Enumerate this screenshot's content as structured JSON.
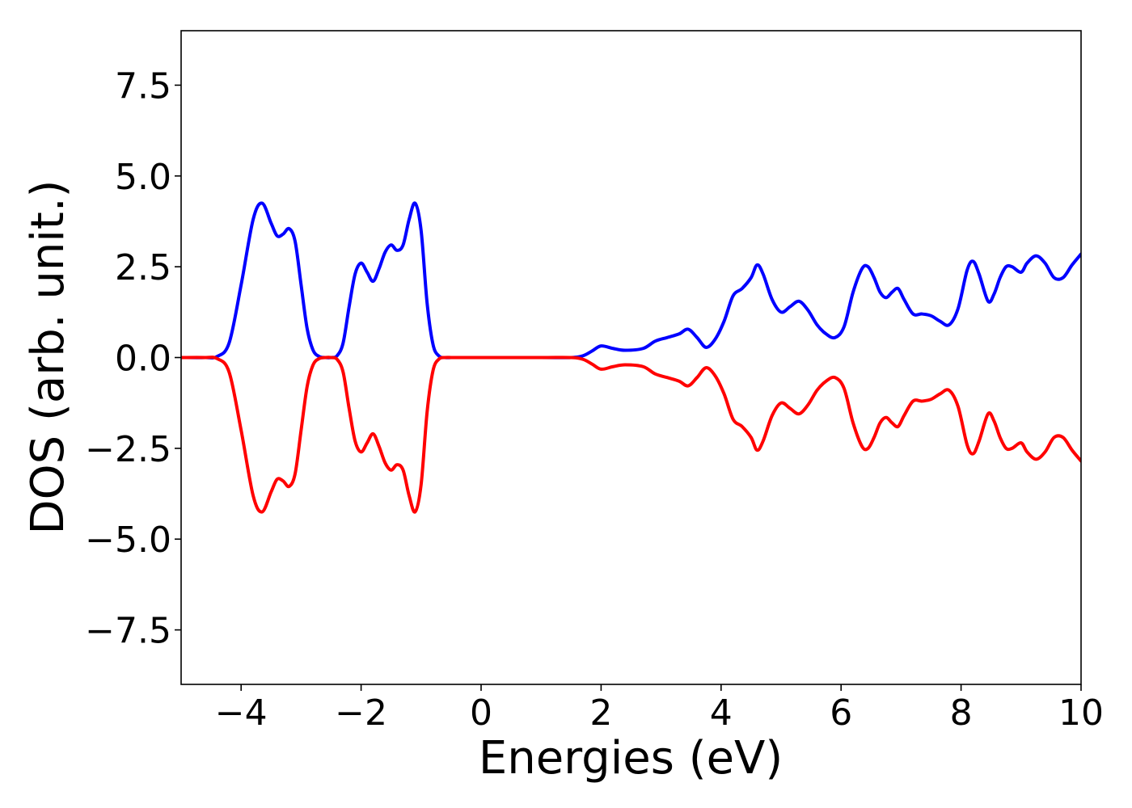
{
  "chart_data": {
    "type": "line",
    "title": "",
    "xlabel": "Energies (eV)",
    "ylabel": "DOS (arb. unit.)",
    "xlim": [
      -5,
      10
    ],
    "ylim": [
      -9,
      9
    ],
    "grid": false,
    "x_ticks": [
      {
        "value": -4,
        "label": "−4"
      },
      {
        "value": -2,
        "label": "−2"
      },
      {
        "value": 0,
        "label": "0"
      },
      {
        "value": 2,
        "label": "2"
      },
      {
        "value": 4,
        "label": "4"
      },
      {
        "value": 6,
        "label": "6"
      },
      {
        "value": 8,
        "label": "8"
      },
      {
        "value": 10,
        "label": "10"
      }
    ],
    "y_ticks": [
      {
        "value": 7.5,
        "label": "7.5"
      },
      {
        "value": 5.0,
        "label": "5.0"
      },
      {
        "value": 2.5,
        "label": "2.5"
      },
      {
        "value": 0.0,
        "label": "0.0"
      },
      {
        "value": -2.5,
        "label": "−2.5"
      },
      {
        "value": -5.0,
        "label": "−5.0"
      },
      {
        "value": -7.5,
        "label": "−7.5"
      }
    ],
    "series": [
      {
        "color": "#0000ff",
        "x": [
          -5.0,
          -4.6,
          -4.4,
          -4.2,
          -4.0,
          -3.8,
          -3.65,
          -3.5,
          -3.4,
          -3.3,
          -3.2,
          -3.1,
          -3.0,
          -2.9,
          -2.8,
          -2.7,
          -2.6,
          -2.5,
          -2.4,
          -2.3,
          -2.2,
          -2.1,
          -2.0,
          -1.9,
          -1.8,
          -1.7,
          -1.6,
          -1.5,
          -1.4,
          -1.3,
          -1.2,
          -1.1,
          -1.0,
          -0.9,
          -0.8,
          -0.7,
          -0.6,
          -0.5,
          -0.4,
          0.0,
          1.0,
          1.5,
          1.7,
          1.85,
          2.0,
          2.2,
          2.4,
          2.7,
          2.9,
          3.1,
          3.3,
          3.45,
          3.6,
          3.75,
          3.9,
          4.05,
          4.2,
          4.35,
          4.5,
          4.6,
          4.7,
          4.85,
          5.0,
          5.15,
          5.3,
          5.45,
          5.6,
          5.75,
          5.9,
          6.05,
          6.2,
          6.35,
          6.45,
          6.55,
          6.65,
          6.75,
          6.85,
          6.95,
          7.05,
          7.2,
          7.35,
          7.5,
          7.65,
          7.8,
          7.95,
          8.1,
          8.2,
          8.3,
          8.45,
          8.55,
          8.65,
          8.75,
          8.85,
          9.0,
          9.1,
          9.25,
          9.4,
          9.55,
          9.7,
          9.85,
          10.0
        ],
        "values": [
          0.0,
          0.0,
          0.03,
          0.4,
          2.0,
          3.8,
          4.25,
          3.7,
          3.35,
          3.4,
          3.55,
          3.2,
          2.0,
          0.8,
          0.2,
          0.03,
          0.0,
          0.0,
          0.05,
          0.4,
          1.4,
          2.3,
          2.6,
          2.35,
          2.1,
          2.45,
          2.9,
          3.1,
          2.95,
          3.1,
          3.8,
          4.25,
          3.5,
          1.5,
          0.35,
          0.04,
          0.0,
          0.0,
          0.0,
          0.0,
          0.0,
          0.0,
          0.05,
          0.18,
          0.32,
          0.25,
          0.2,
          0.25,
          0.45,
          0.55,
          0.65,
          0.78,
          0.55,
          0.28,
          0.5,
          1.0,
          1.7,
          1.9,
          2.2,
          2.55,
          2.3,
          1.6,
          1.25,
          1.4,
          1.55,
          1.3,
          0.9,
          0.65,
          0.55,
          0.85,
          1.8,
          2.45,
          2.5,
          2.2,
          1.8,
          1.65,
          1.8,
          1.9,
          1.6,
          1.2,
          1.2,
          1.15,
          1.0,
          0.9,
          1.35,
          2.4,
          2.65,
          2.3,
          1.55,
          1.75,
          2.2,
          2.5,
          2.5,
          2.35,
          2.6,
          2.8,
          2.6,
          2.2,
          2.2,
          2.55,
          2.85
        ]
      },
      {
        "color": "#ff0000",
        "x": [
          -5.0,
          -4.6,
          -4.4,
          -4.2,
          -4.0,
          -3.8,
          -3.65,
          -3.5,
          -3.4,
          -3.3,
          -3.2,
          -3.1,
          -3.0,
          -2.9,
          -2.8,
          -2.7,
          -2.6,
          -2.5,
          -2.4,
          -2.3,
          -2.2,
          -2.1,
          -2.0,
          -1.9,
          -1.8,
          -1.7,
          -1.6,
          -1.5,
          -1.4,
          -1.3,
          -1.2,
          -1.1,
          -1.0,
          -0.9,
          -0.8,
          -0.7,
          -0.6,
          -0.5,
          -0.4,
          0.0,
          1.0,
          1.5,
          1.7,
          1.85,
          2.0,
          2.2,
          2.4,
          2.7,
          2.9,
          3.1,
          3.3,
          3.45,
          3.6,
          3.75,
          3.9,
          4.05,
          4.2,
          4.35,
          4.5,
          4.6,
          4.7,
          4.85,
          5.0,
          5.15,
          5.3,
          5.45,
          5.6,
          5.75,
          5.9,
          6.05,
          6.2,
          6.35,
          6.45,
          6.55,
          6.65,
          6.75,
          6.85,
          6.95,
          7.05,
          7.2,
          7.35,
          7.5,
          7.65,
          7.8,
          7.95,
          8.1,
          8.2,
          8.3,
          8.45,
          8.55,
          8.65,
          8.75,
          8.85,
          9.0,
          9.1,
          9.25,
          9.4,
          9.55,
          9.7,
          9.85,
          10.0
        ],
        "values": [
          0.0,
          0.0,
          -0.03,
          -0.4,
          -2.0,
          -3.8,
          -4.25,
          -3.7,
          -3.35,
          -3.4,
          -3.55,
          -3.2,
          -2.0,
          -0.8,
          -0.2,
          -0.03,
          0.0,
          0.0,
          -0.05,
          -0.4,
          -1.4,
          -2.3,
          -2.6,
          -2.35,
          -2.1,
          -2.45,
          -2.9,
          -3.1,
          -2.95,
          -3.1,
          -3.8,
          -4.25,
          -3.5,
          -1.5,
          -0.35,
          -0.04,
          0.0,
          0.0,
          0.0,
          0.0,
          0.0,
          0.0,
          -0.05,
          -0.18,
          -0.32,
          -0.25,
          -0.2,
          -0.25,
          -0.45,
          -0.55,
          -0.65,
          -0.78,
          -0.55,
          -0.28,
          -0.5,
          -1.0,
          -1.7,
          -1.9,
          -2.2,
          -2.55,
          -2.3,
          -1.6,
          -1.25,
          -1.4,
          -1.55,
          -1.3,
          -0.9,
          -0.65,
          -0.55,
          -0.85,
          -1.8,
          -2.45,
          -2.5,
          -2.2,
          -1.8,
          -1.65,
          -1.8,
          -1.9,
          -1.6,
          -1.2,
          -1.2,
          -1.15,
          -1.0,
          -0.9,
          -1.35,
          -2.4,
          -2.65,
          -2.3,
          -1.55,
          -1.75,
          -2.2,
          -2.5,
          -2.5,
          -2.35,
          -2.6,
          -2.8,
          -2.6,
          -2.2,
          -2.2,
          -2.55,
          -2.85
        ]
      }
    ]
  }
}
